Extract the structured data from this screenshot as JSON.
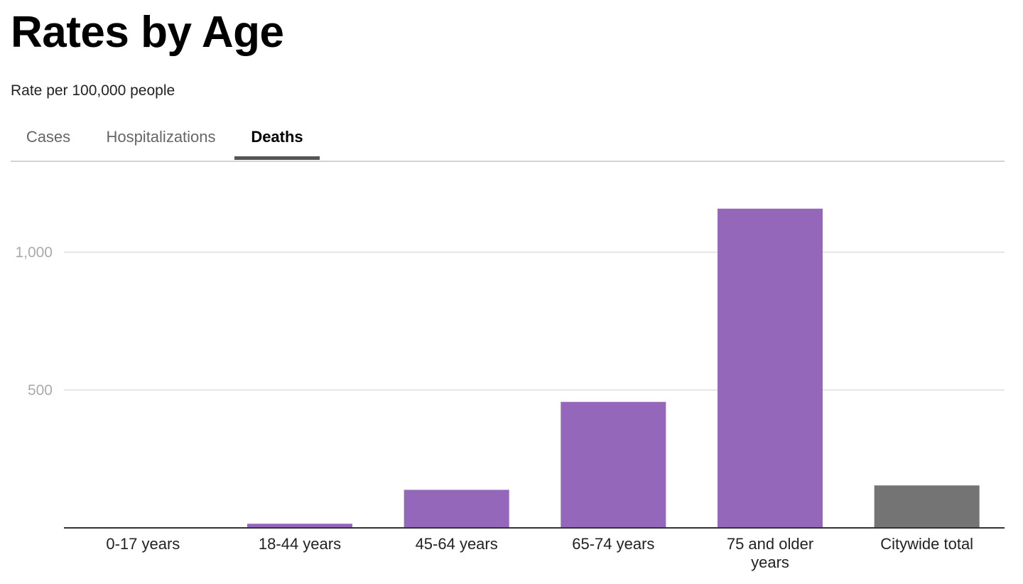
{
  "header": {
    "title": "Rates by Age",
    "subtitle": "Rate per 100,000 people"
  },
  "tabs": [
    {
      "label": "Cases",
      "active": false
    },
    {
      "label": "Hospitalizations",
      "active": false
    },
    {
      "label": "Deaths",
      "active": true
    }
  ],
  "colors": {
    "bar_age": "#9467bb",
    "bar_total": "#747474",
    "gridline": "#dddddd",
    "axis": "#333333"
  },
  "chart_data": {
    "type": "bar",
    "title": "Rates by Age",
    "subtitle": "Rate per 100,000 people",
    "xlabel": "",
    "ylabel": "",
    "ylim": [
      0,
      1160
    ],
    "yticks": [
      500,
      1000
    ],
    "ytick_labels": [
      "500",
      "1,000"
    ],
    "grid": true,
    "categories": [
      "0-17 years",
      "18-44 years",
      "45-64 years",
      "65-74 years",
      "75 and older years",
      "Citywide total"
    ],
    "values": [
      1,
      15,
      138,
      457,
      1158,
      154
    ],
    "bar_colors": [
      "#9467bb",
      "#9467bb",
      "#9467bb",
      "#9467bb",
      "#9467bb",
      "#747474"
    ]
  }
}
